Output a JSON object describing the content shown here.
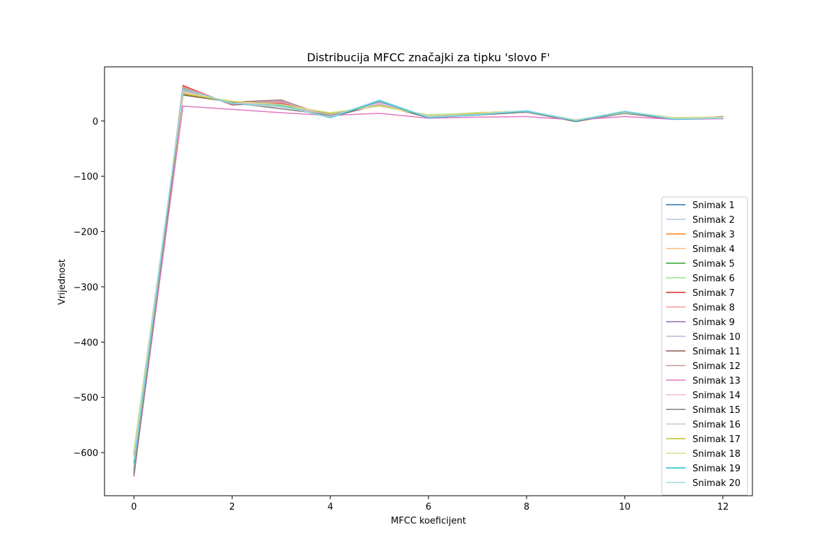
{
  "chart_data": {
    "type": "line",
    "title": "Distribucija MFCC značajki za tipku 'slovo F'",
    "xlabel": "MFCC koeficijent",
    "ylabel": "Vrijednost",
    "xlim": [
      -0.6,
      12.6
    ],
    "ylim": [
      -678,
      98
    ],
    "xticks": [
      0,
      2,
      4,
      6,
      8,
      10,
      12
    ],
    "xtick_labels": [
      "0",
      "2",
      "4",
      "6",
      "8",
      "10",
      "12"
    ],
    "yticks": [
      -600,
      -500,
      -400,
      -300,
      -200,
      -100,
      0
    ],
    "ytick_labels": [
      "−600",
      "−500",
      "−400",
      "−300",
      "−200",
      "−100",
      "0"
    ],
    "grid": false,
    "legend_position": "lower-right",
    "x": [
      0,
      1,
      2,
      3,
      4,
      5,
      6,
      7,
      8,
      9,
      10,
      11,
      12
    ],
    "series": [
      {
        "name": "Snimak 1",
        "color": "#1f77b4",
        "values": [
          -625,
          58,
          32,
          30,
          8,
          33,
          7,
          12,
          17,
          1,
          15,
          4,
          6
        ]
      },
      {
        "name": "Snimak 2",
        "color": "#aec7e8",
        "values": [
          -630,
          56,
          31,
          29,
          9,
          34,
          8,
          13,
          18,
          1,
          16,
          5,
          6
        ]
      },
      {
        "name": "Snimak 3",
        "color": "#ff7f0e",
        "values": [
          -638,
          60,
          30,
          32,
          10,
          30,
          8,
          12,
          16,
          0,
          14,
          4,
          7
        ]
      },
      {
        "name": "Snimak 4",
        "color": "#ffbb78",
        "values": [
          -620,
          55,
          33,
          28,
          12,
          31,
          9,
          14,
          17,
          1,
          15,
          5,
          6
        ]
      },
      {
        "name": "Snimak 5",
        "color": "#2ca02c",
        "values": [
          -600,
          50,
          34,
          27,
          14,
          28,
          10,
          15,
          18,
          2,
          16,
          5,
          7
        ]
      },
      {
        "name": "Snimak 6",
        "color": "#98df8a",
        "values": [
          -595,
          48,
          36,
          26,
          15,
          27,
          11,
          15,
          18,
          2,
          17,
          6,
          7
        ]
      },
      {
        "name": "Snimak 7",
        "color": "#d62728",
        "values": [
          -640,
          64,
          29,
          33,
          8,
          35,
          6,
          11,
          16,
          0,
          14,
          3,
          6
        ]
      },
      {
        "name": "Snimak 8",
        "color": "#ff9896",
        "values": [
          -635,
          62,
          30,
          34,
          9,
          36,
          7,
          12,
          17,
          0,
          15,
          4,
          6
        ]
      },
      {
        "name": "Snimak 9",
        "color": "#9467bd",
        "values": [
          -628,
          57,
          32,
          36,
          8,
          33,
          7,
          12,
          17,
          1,
          15,
          4,
          7
        ]
      },
      {
        "name": "Snimak 10",
        "color": "#c5b0d5",
        "values": [
          -626,
          58,
          31,
          35,
          9,
          34,
          8,
          13,
          17,
          1,
          15,
          4,
          7
        ]
      },
      {
        "name": "Snimak 11",
        "color": "#8c564b",
        "values": [
          -642,
          47,
          34,
          38,
          7,
          30,
          6,
          12,
          16,
          -1,
          14,
          3,
          8
        ]
      },
      {
        "name": "Snimak 12",
        "color": "#c49c94",
        "values": [
          -632,
          52,
          33,
          37,
          8,
          31,
          7,
          12,
          16,
          0,
          14,
          4,
          7
        ]
      },
      {
        "name": "Snimak 13",
        "color": "#e377c2",
        "values": [
          -640,
          27,
          21,
          15,
          10,
          14,
          5,
          7,
          8,
          2,
          8,
          3,
          4
        ]
      },
      {
        "name": "Snimak 14",
        "color": "#f7b6d2",
        "values": [
          -622,
          54,
          32,
          31,
          10,
          32,
          8,
          13,
          17,
          1,
          15,
          5,
          6
        ]
      },
      {
        "name": "Snimak 15",
        "color": "#7f7f7f",
        "values": [
          -638,
          50,
          33,
          22,
          11,
          29,
          8,
          12,
          16,
          1,
          14,
          4,
          7
        ]
      },
      {
        "name": "Snimak 16",
        "color": "#c7c7c7",
        "values": [
          -624,
          53,
          32,
          25,
          12,
          30,
          9,
          13,
          17,
          1,
          15,
          5,
          6
        ]
      },
      {
        "name": "Snimak 17",
        "color": "#bcbd22",
        "values": [
          -605,
          49,
          35,
          30,
          14,
          28,
          10,
          14,
          18,
          2,
          16,
          5,
          7
        ]
      },
      {
        "name": "Snimak 18",
        "color": "#dbdb8d",
        "values": [
          -598,
          51,
          36,
          29,
          15,
          27,
          10,
          15,
          18,
          2,
          16,
          6,
          7
        ]
      },
      {
        "name": "Snimak 19",
        "color": "#17becf",
        "values": [
          -618,
          59,
          31,
          28,
          6,
          36,
          6,
          11,
          18,
          0,
          17,
          3,
          5
        ]
      },
      {
        "name": "Snimak 20",
        "color": "#9edae5",
        "values": [
          -612,
          58,
          32,
          27,
          7,
          38,
          7,
          12,
          19,
          1,
          18,
          4,
          5
        ]
      }
    ]
  }
}
